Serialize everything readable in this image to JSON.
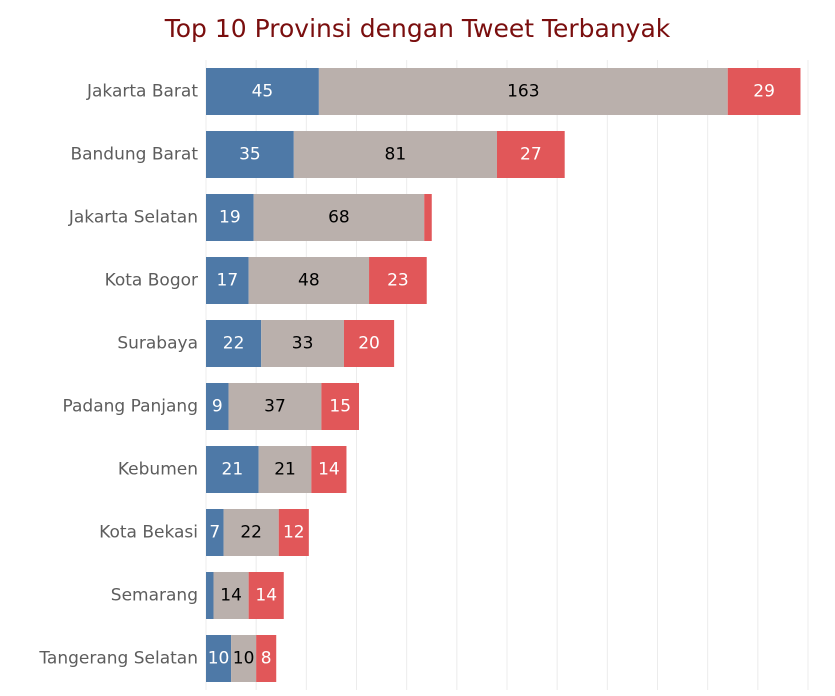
{
  "chart_data": {
    "type": "bar",
    "orientation": "horizontal",
    "stacked": true,
    "title": "Top 10 Provinsi dengan Tweet Terbanyak",
    "xlabel": "",
    "ylabel": "",
    "xlim": [
      0,
      240
    ],
    "grid": true,
    "legend": "none",
    "categories": [
      "Jakarta Barat",
      "Bandung Barat",
      "Jakarta Selatan",
      "Kota Bogor",
      "Surabaya",
      "Padang Panjang",
      "Kebumen",
      "Kota Bekasi",
      "Semarang",
      "Tangerang Selatan"
    ],
    "series": [
      {
        "color": "#4e79a7",
        "label_color": "#ffffff",
        "values": [
          45,
          35,
          19,
          17,
          22,
          9,
          21,
          7,
          3,
          10
        ],
        "labels": [
          "45",
          "35",
          "19",
          "17",
          "22",
          "9",
          "21",
          "7",
          "",
          "10"
        ]
      },
      {
        "color": "#bab0ac",
        "label_color": "#000000",
        "values": [
          163,
          81,
          68,
          48,
          33,
          37,
          21,
          22,
          14,
          10
        ],
        "labels": [
          "163",
          "81",
          "68",
          "48",
          "33",
          "37",
          "21",
          "22",
          "14",
          "10"
        ]
      },
      {
        "color": "#e15759",
        "label_color": "#ffffff",
        "values": [
          29,
          27,
          3,
          23,
          20,
          15,
          14,
          12,
          14,
          8
        ],
        "labels": [
          "29",
          "27",
          "",
          "23",
          "20",
          "15",
          "14",
          "12",
          "14",
          "8"
        ]
      }
    ]
  }
}
